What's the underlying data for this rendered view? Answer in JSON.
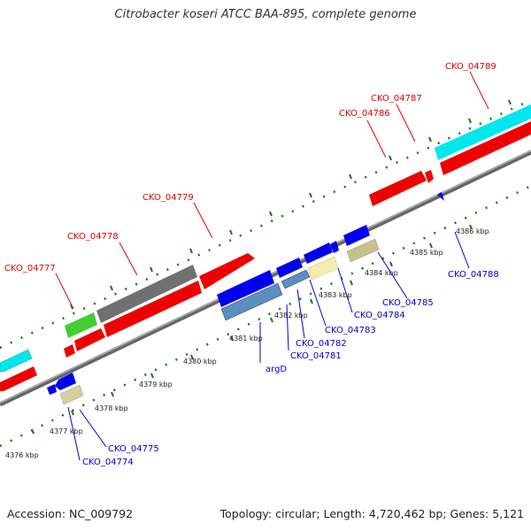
{
  "title": "Citrobacter koseri ATCC BAA-895, complete genome",
  "footer": {
    "accession": "Accession: NC_009792",
    "summary": "Topology: circular; Length: 4,720,462 bp; Genes: 5,121"
  },
  "colors": {
    "forward_cds": "#ee0000",
    "reverse_cds": "#0000ee",
    "rrna": "#00e8f0",
    "pseudo": "#707070",
    "trna": "#44cc33",
    "misc": "#d8d09a",
    "selected": "#5a8fc0",
    "backbone": "#888888",
    "tick": "#117711"
  },
  "ticks": [
    "4376 kbp",
    "4377 kbp",
    "4378 kbp",
    "4379 kbp",
    "4380 kbp",
    "4381 kbp",
    "4382 kbp",
    "4383 kbp",
    "4384 kbp",
    "4385 kbp",
    "4386 kbp"
  ],
  "forward_labels": [
    "CKO_04777",
    "CKO_04778",
    "CKO_04779",
    "CKO_04786",
    "CKO_04787",
    "CKO_04789"
  ],
  "reverse_labels": [
    "argD",
    "CKO_04781",
    "CKO_04782",
    "CKO_04783",
    "CKO_04784",
    "CKO_04785",
    "CKO_04788",
    "CKO_04775",
    "CKO_04774"
  ]
}
